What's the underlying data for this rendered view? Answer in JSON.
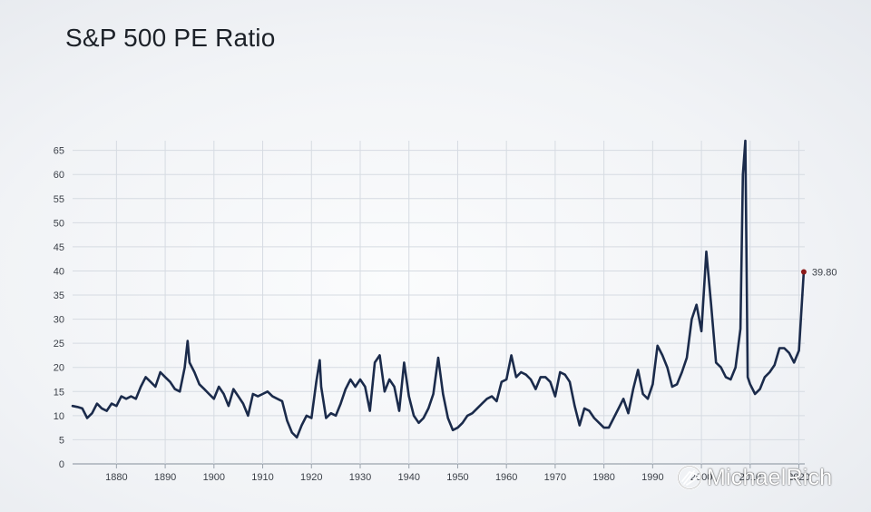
{
  "chart_data": {
    "type": "line",
    "title": "S&P 500 PE Ratio",
    "xlabel": "",
    "ylabel": "",
    "xlim": [
      1871,
      2021.2
    ],
    "ylim": [
      0,
      67
    ],
    "x_ticks": [
      1880,
      1890,
      1900,
      1910,
      1920,
      1930,
      1940,
      1950,
      1960,
      1970,
      1980,
      1990,
      2000,
      2010,
      2020
    ],
    "y_ticks": [
      0,
      5,
      10,
      15,
      20,
      25,
      30,
      35,
      40,
      45,
      50,
      55,
      60,
      65
    ],
    "grid": true,
    "legend": "none",
    "line_color": "#1b2b4b",
    "end_marker_color": "#8b1a1a",
    "end_label": "39.80",
    "series": [
      {
        "x": [
          1871,
          1872,
          1873,
          1874,
          1875,
          1876,
          1877,
          1878,
          1879,
          1880,
          1881,
          1882,
          1883,
          1884,
          1885,
          1886,
          1887,
          1888,
          1889,
          1890,
          1891,
          1892,
          1893,
          1894,
          1894.6,
          1895,
          1896,
          1897,
          1898,
          1899,
          1900,
          1901,
          1902,
          1903,
          1904,
          1905,
          1906,
          1907,
          1908,
          1909,
          1910,
          1911,
          1912,
          1913,
          1914,
          1915,
          1916,
          1917,
          1918,
          1919,
          1920,
          1921,
          1921.7,
          1922,
          1923,
          1924,
          1925,
          1926,
          1927,
          1928,
          1929,
          1930,
          1931,
          1932,
          1933,
          1934,
          1935,
          1936,
          1937,
          1938,
          1939,
          1940,
          1941,
          1942,
          1943,
          1944,
          1945,
          1946,
          1947,
          1948,
          1949,
          1950,
          1951,
          1952,
          1953,
          1954,
          1955,
          1956,
          1957,
          1958,
          1959,
          1960,
          1961,
          1962,
          1963,
          1964,
          1965,
          1966,
          1967,
          1968,
          1969,
          1970,
          1971,
          1972,
          1973,
          1974,
          1975,
          1976,
          1977,
          1978,
          1979,
          1980,
          1981,
          1982,
          1983,
          1984,
          1985,
          1986,
          1987,
          1988,
          1989,
          1990,
          1991,
          1992,
          1993,
          1994,
          1995,
          1996,
          1997,
          1998,
          1999,
          2000,
          2001,
          2002,
          2003,
          2004,
          2005,
          2006,
          2007,
          2008,
          2008.5,
          2009,
          2009.5,
          2010,
          2011,
          2012,
          2013,
          2014,
          2015,
          2016,
          2017,
          2018,
          2019,
          2020,
          2021
        ],
        "values": [
          12,
          11.8,
          11.5,
          9.5,
          10.5,
          12.5,
          11.5,
          11,
          12.5,
          12,
          14,
          13.5,
          14,
          13.5,
          16,
          18,
          17,
          16,
          19,
          18,
          17,
          15.5,
          15,
          20,
          25.5,
          21,
          19,
          16.5,
          15.5,
          14.5,
          13.5,
          16,
          14.5,
          12,
          15.5,
          14,
          12.5,
          10,
          14.5,
          14,
          14.5,
          15,
          14,
          13.5,
          13,
          9,
          6.5,
          5.5,
          8,
          10,
          9.5,
          17,
          21.5,
          16,
          9.5,
          10.5,
          10,
          12.5,
          15.5,
          17.5,
          16,
          17.5,
          16,
          11,
          21,
          22.5,
          15,
          17.5,
          16,
          11,
          21,
          14,
          10,
          8.5,
          9.5,
          11.5,
          14.5,
          22,
          14.5,
          9.5,
          7,
          7.5,
          8.5,
          10,
          10.5,
          11.5,
          12.5,
          13.5,
          14,
          13,
          17,
          17.5,
          22.5,
          18,
          19,
          18.5,
          17.5,
          15.5,
          18,
          18,
          17,
          14,
          19,
          18.5,
          17,
          12,
          8,
          11.5,
          11,
          9.5,
          8.5,
          7.5,
          7.5,
          9.5,
          11.5,
          13.5,
          10.5,
          15.5,
          19.5,
          14.5,
          13.5,
          16.5,
          24.5,
          22.5,
          20,
          16,
          16.5,
          19,
          22,
          30,
          33,
          27.5,
          44,
          33,
          21,
          20,
          18,
          17.5,
          20,
          28,
          60,
          67,
          18,
          16.5,
          14.5,
          15.5,
          18,
          19,
          20.5,
          24,
          24,
          23,
          21,
          23.5,
          39.8
        ]
      }
    ]
  },
  "watermark": {
    "text": "MichaelRich",
    "icon": "camera-lens-icon"
  }
}
